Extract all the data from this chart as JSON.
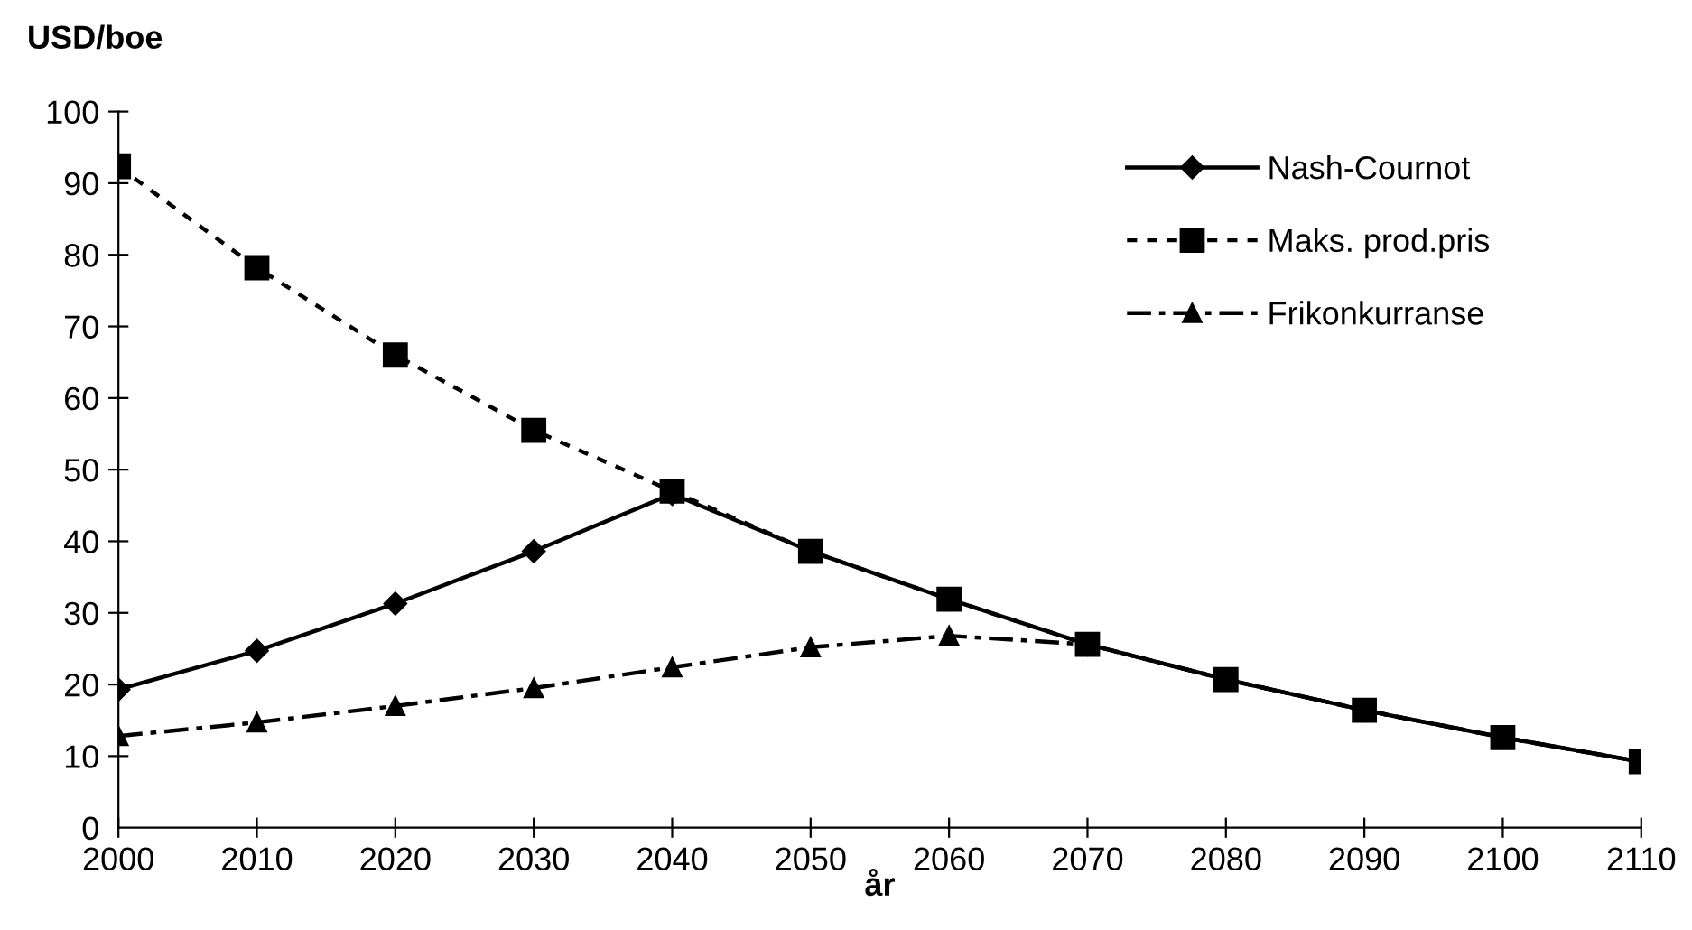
{
  "chart_data": {
    "type": "line",
    "ylabel": "USD/boe",
    "xlabel": "år",
    "x": [
      2000,
      2010,
      2020,
      2030,
      2040,
      2050,
      2060,
      2070,
      2080,
      2090,
      2100,
      2110
    ],
    "xlim": [
      2000,
      2110
    ],
    "xticks": [
      2000,
      2010,
      2020,
      2030,
      2040,
      2050,
      2060,
      2070,
      2080,
      2090,
      2100,
      2110
    ],
    "ylim": [
      0,
      100
    ],
    "yticks": [
      0,
      10,
      20,
      30,
      40,
      50,
      60,
      70,
      80,
      90,
      100
    ],
    "grid": false,
    "legend": "top right",
    "series": [
      {
        "name": "Nash-Cournot",
        "color": "#000000",
        "marker": "diamond",
        "line_style": "solid",
        "values": [
          19.3,
          24.7,
          31.3,
          38.6,
          46.6,
          38.6,
          31.9,
          25.6,
          20.7,
          16.4,
          12.6,
          9.2
        ]
      },
      {
        "name": "Maks. prod.pris",
        "color": "#000000",
        "marker": "square",
        "line_style": "dotted",
        "values": [
          92.3,
          78.2,
          66.0,
          55.5,
          47.0,
          38.6,
          31.9,
          25.6,
          20.7,
          16.4,
          12.6,
          9.2
        ]
      },
      {
        "name": "Frikonkurranse",
        "color": "#000000",
        "marker": "triangle",
        "line_style": "dashed",
        "values": [
          12.8,
          14.7,
          17.0,
          19.5,
          22.4,
          25.2,
          26.8,
          25.6,
          20.7,
          16.4,
          12.6,
          9.2
        ]
      }
    ]
  }
}
